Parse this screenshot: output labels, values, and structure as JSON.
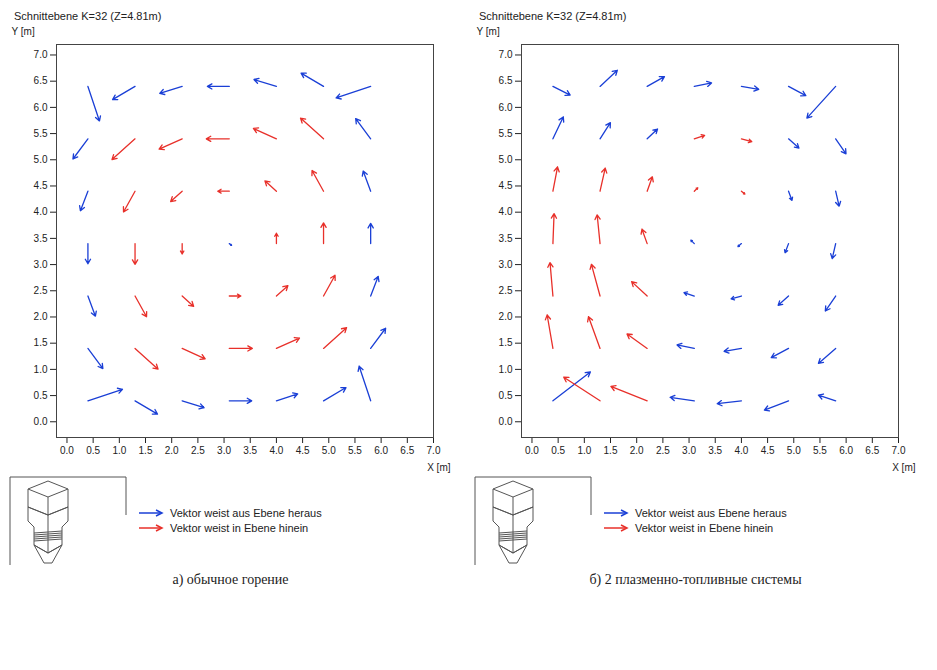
{
  "chart_data": [
    {
      "type": "vector",
      "title": "Schnittebene K=32 (Z=4.81m)",
      "caption": "а) обычное горение",
      "x_label": "X [m]",
      "y_label": "Y [m]",
      "xlim": [
        -0.2,
        7.0
      ],
      "ylim": [
        -0.3,
        7.2
      ],
      "xticks": [
        {
          "value": 0,
          "label": "0.0"
        },
        0.5,
        {
          "value": 1,
          "label": "1.0"
        },
        1.5,
        {
          "value": 2,
          "label": "2.0"
        },
        2.5,
        {
          "value": 3,
          "label": "3.0"
        },
        3.5,
        {
          "value": 4,
          "label": "4.0"
        },
        4.5,
        {
          "value": 5,
          "label": "5.0"
        },
        5.5,
        {
          "value": 6,
          "label": "6.0"
        },
        6.5,
        {
          "value": 7,
          "label": "7.0"
        }
      ],
      "yticks": [
        {
          "value": 0,
          "label": "0.0"
        },
        0.5,
        {
          "value": 1,
          "label": "1.0"
        },
        1.5,
        {
          "value": 2,
          "label": "2.0"
        },
        2.5,
        {
          "value": 3,
          "label": "3.0"
        },
        3.5,
        {
          "value": 4,
          "label": "4.0"
        },
        4.5,
        {
          "value": 5,
          "label": "5.0"
        },
        5.5,
        {
          "value": 6,
          "label": "6.0"
        },
        6.5,
        {
          "value": 7,
          "label": "7.0"
        }
      ],
      "legend": "bottom",
      "series": [
        {
          "name": "Vektor weist aus Ebene heraus",
          "color": "#1a3fd6",
          "vectors": [
            [
              0.4,
              0.4,
              6.0,
              2.0
            ],
            [
              1.3,
              0.4,
              3.9,
              -2.3
            ],
            [
              2.2,
              0.4,
              3.8,
              -1.2
            ],
            [
              3.1,
              0.4,
              3.9,
              0.0
            ],
            [
              4.0,
              0.4,
              3.7,
              1.2
            ],
            [
              4.9,
              0.4,
              3.9,
              2.3
            ],
            [
              5.8,
              0.4,
              -2.0,
              6.0
            ],
            [
              0.4,
              1.4,
              2.6,
              -3.5
            ],
            [
              5.8,
              1.4,
              2.6,
              3.5
            ],
            [
              0.4,
              2.4,
              1.3,
              -3.5
            ],
            [
              5.8,
              2.4,
              1.3,
              3.4
            ],
            [
              0.4,
              3.4,
              0.0,
              -3.5
            ],
            [
              3.1,
              3.4,
              0.4,
              -0.3
            ],
            [
              5.8,
              3.4,
              0.0,
              3.5
            ],
            [
              0.4,
              4.4,
              -1.3,
              -3.4
            ],
            [
              5.8,
              4.4,
              -1.3,
              3.5
            ],
            [
              0.4,
              5.4,
              -2.6,
              -3.5
            ],
            [
              5.8,
              5.4,
              -2.6,
              3.5
            ],
            [
              0.4,
              6.4,
              2.0,
              -6.0
            ],
            [
              1.3,
              6.4,
              -3.9,
              -2.3
            ],
            [
              2.2,
              6.4,
              -3.9,
              -1.2
            ],
            [
              3.1,
              6.4,
              -3.8,
              0.0
            ],
            [
              4.0,
              6.4,
              -3.9,
              1.2
            ],
            [
              4.9,
              6.4,
              -3.9,
              2.3
            ],
            [
              5.8,
              6.4,
              -6.0,
              -2.0
            ]
          ]
        },
        {
          "name": "Vektor weist in Ebene hinein",
          "color": "#e8302a",
          "vectors": [
            [
              1.3,
              1.4,
              4.0,
              -3.6
            ],
            [
              2.2,
              1.4,
              4.0,
              -1.8
            ],
            [
              3.1,
              1.4,
              4.0,
              0.0
            ],
            [
              4.0,
              1.4,
              4.0,
              1.8
            ],
            [
              4.9,
              1.4,
              4.0,
              3.6
            ],
            [
              1.3,
              2.4,
              2.0,
              -3.6
            ],
            [
              2.2,
              2.4,
              2.0,
              -1.8
            ],
            [
              3.1,
              2.4,
              2.0,
              0.0
            ],
            [
              4.0,
              2.4,
              2.0,
              1.8
            ],
            [
              4.9,
              2.4,
              2.0,
              3.6
            ],
            [
              1.3,
              3.4,
              0.0,
              -3.6
            ],
            [
              2.2,
              3.4,
              0.0,
              -1.8
            ],
            [
              4.0,
              3.4,
              0.0,
              1.8
            ],
            [
              4.9,
              3.4,
              0.0,
              3.6
            ],
            [
              1.3,
              4.4,
              -2.0,
              -3.6
            ],
            [
              2.2,
              4.4,
              -2.0,
              -1.8
            ],
            [
              3.1,
              4.4,
              -2.0,
              0.0
            ],
            [
              4.0,
              4.4,
              -2.0,
              1.8
            ],
            [
              4.9,
              4.4,
              -2.0,
              3.6
            ],
            [
              1.3,
              5.4,
              -4.0,
              -3.6
            ],
            [
              2.2,
              5.4,
              -4.0,
              -1.8
            ],
            [
              3.1,
              5.4,
              -4.0,
              0.0
            ],
            [
              4.0,
              5.4,
              -4.0,
              1.8
            ],
            [
              4.9,
              5.4,
              -4.0,
              3.6
            ]
          ]
        }
      ]
    },
    {
      "type": "vector",
      "title": "Schnittebene K=32 (Z=4.81m)",
      "caption": "б) 2 плазменно-топливные системы",
      "x_label": "X [m]",
      "y_label": "Y [m]",
      "xlim": [
        -0.2,
        7.0
      ],
      "ylim": [
        -0.3,
        7.2
      ],
      "xticks": [
        {
          "value": 0,
          "label": "0.0"
        },
        0.5,
        {
          "value": 1,
          "label": "1.0"
        },
        1.5,
        {
          "value": 2,
          "label": "2.0"
        },
        2.5,
        {
          "value": 3,
          "label": "3.0"
        },
        3.5,
        {
          "value": 4,
          "label": "4.0"
        },
        4.5,
        {
          "value": 5,
          "label": "5.0"
        },
        5.5,
        {
          "value": 6,
          "label": "6.0"
        },
        6.5,
        {
          "value": 7,
          "label": "7.0"
        }
      ],
      "yticks": [
        {
          "value": 0,
          "label": "0.0"
        },
        0.5,
        {
          "value": 1,
          "label": "1.0"
        },
        1.5,
        {
          "value": 2,
          "label": "2.0"
        },
        2.5,
        {
          "value": 3,
          "label": "3.0"
        },
        3.5,
        {
          "value": 4,
          "label": "4.0"
        },
        4.5,
        {
          "value": 5,
          "label": "5.0"
        },
        5.5,
        {
          "value": 6,
          "label": "6.0"
        },
        6.5,
        {
          "value": 7,
          "label": "7.0"
        }
      ],
      "legend": "bottom",
      "series": [
        {
          "name": "Vektor weist aus Ebene heraus",
          "color": "#1a3fd6",
          "vectors": [
            [
              0.4,
              0.4,
              6.5,
              5.0
            ],
            [
              3.1,
              0.4,
              -4.2,
              0.6
            ],
            [
              4.0,
              0.4,
              -4.2,
              -0.5
            ],
            [
              4.9,
              0.4,
              -4.2,
              -1.6
            ],
            [
              5.8,
              0.4,
              -3.0,
              1.0
            ],
            [
              3.1,
              1.4,
              -3.0,
              0.6
            ],
            [
              4.0,
              1.4,
              -3.0,
              -0.5
            ],
            [
              4.9,
              1.4,
              -3.0,
              -1.6
            ],
            [
              5.8,
              1.4,
              -3.0,
              -2.6
            ],
            [
              3.1,
              2.4,
              -1.8,
              0.6
            ],
            [
              4.0,
              2.4,
              -1.8,
              -0.5
            ],
            [
              4.9,
              2.4,
              -1.8,
              -1.6
            ],
            [
              5.8,
              2.4,
              -1.8,
              -2.6
            ],
            [
              3.1,
              3.4,
              -0.6,
              0.6
            ],
            [
              4.0,
              3.4,
              -0.6,
              -0.5
            ],
            [
              4.9,
              3.4,
              -0.6,
              -1.6
            ],
            [
              5.8,
              3.4,
              -0.6,
              -2.6
            ],
            [
              4.9,
              4.4,
              0.6,
              -1.6
            ],
            [
              5.8,
              4.4,
              0.6,
              -2.6
            ],
            [
              0.4,
              5.4,
              1.8,
              3.8
            ],
            [
              1.3,
              5.4,
              1.8,
              2.8
            ],
            [
              2.2,
              5.4,
              1.8,
              1.7
            ],
            [
              4.9,
              5.4,
              1.8,
              -1.6
            ],
            [
              5.8,
              5.4,
              1.8,
              -2.6
            ],
            [
              0.4,
              6.4,
              3.0,
              -1.5
            ],
            [
              1.3,
              6.4,
              3.0,
              2.8
            ],
            [
              2.2,
              6.4,
              3.0,
              1.7
            ],
            [
              3.1,
              6.4,
              3.0,
              0.6
            ],
            [
              4.0,
              6.4,
              3.0,
              -0.5
            ],
            [
              4.9,
              6.4,
              3.0,
              -1.6
            ],
            [
              5.8,
              6.4,
              -5.0,
              -5.5
            ]
          ]
        },
        {
          "name": "Vektor weist in Ebene hinein",
          "color": "#e8302a",
          "vectors": [
            [
              1.3,
              0.4,
              -6.3,
              4.1
            ],
            [
              2.2,
              0.4,
              -6.3,
              2.5
            ],
            [
              0.4,
              1.4,
              -1.0,
              5.8
            ],
            [
              1.3,
              1.4,
              -2.0,
              5.5
            ],
            [
              2.2,
              1.4,
              -3.5,
              2.5
            ],
            [
              0.4,
              2.4,
              -0.5,
              5.8
            ],
            [
              1.3,
              2.4,
              -1.5,
              5.5
            ],
            [
              2.2,
              2.4,
              -2.7,
              2.5
            ],
            [
              0.4,
              3.4,
              0.2,
              5.2
            ],
            [
              1.3,
              3.4,
              -0.5,
              5.0
            ],
            [
              2.2,
              3.4,
              -0.9,
              2.5
            ],
            [
              0.4,
              4.4,
              0.8,
              4.2
            ],
            [
              1.3,
              4.4,
              0.9,
              4.0
            ],
            [
              2.2,
              4.4,
              0.9,
              2.5
            ],
            [
              3.1,
              4.4,
              0.6,
              0.6
            ],
            [
              4.0,
              4.4,
              0.6,
              -0.5
            ],
            [
              3.1,
              5.4,
              1.8,
              0.6
            ],
            [
              4.0,
              5.4,
              1.8,
              -0.5
            ]
          ]
        }
      ]
    }
  ]
}
